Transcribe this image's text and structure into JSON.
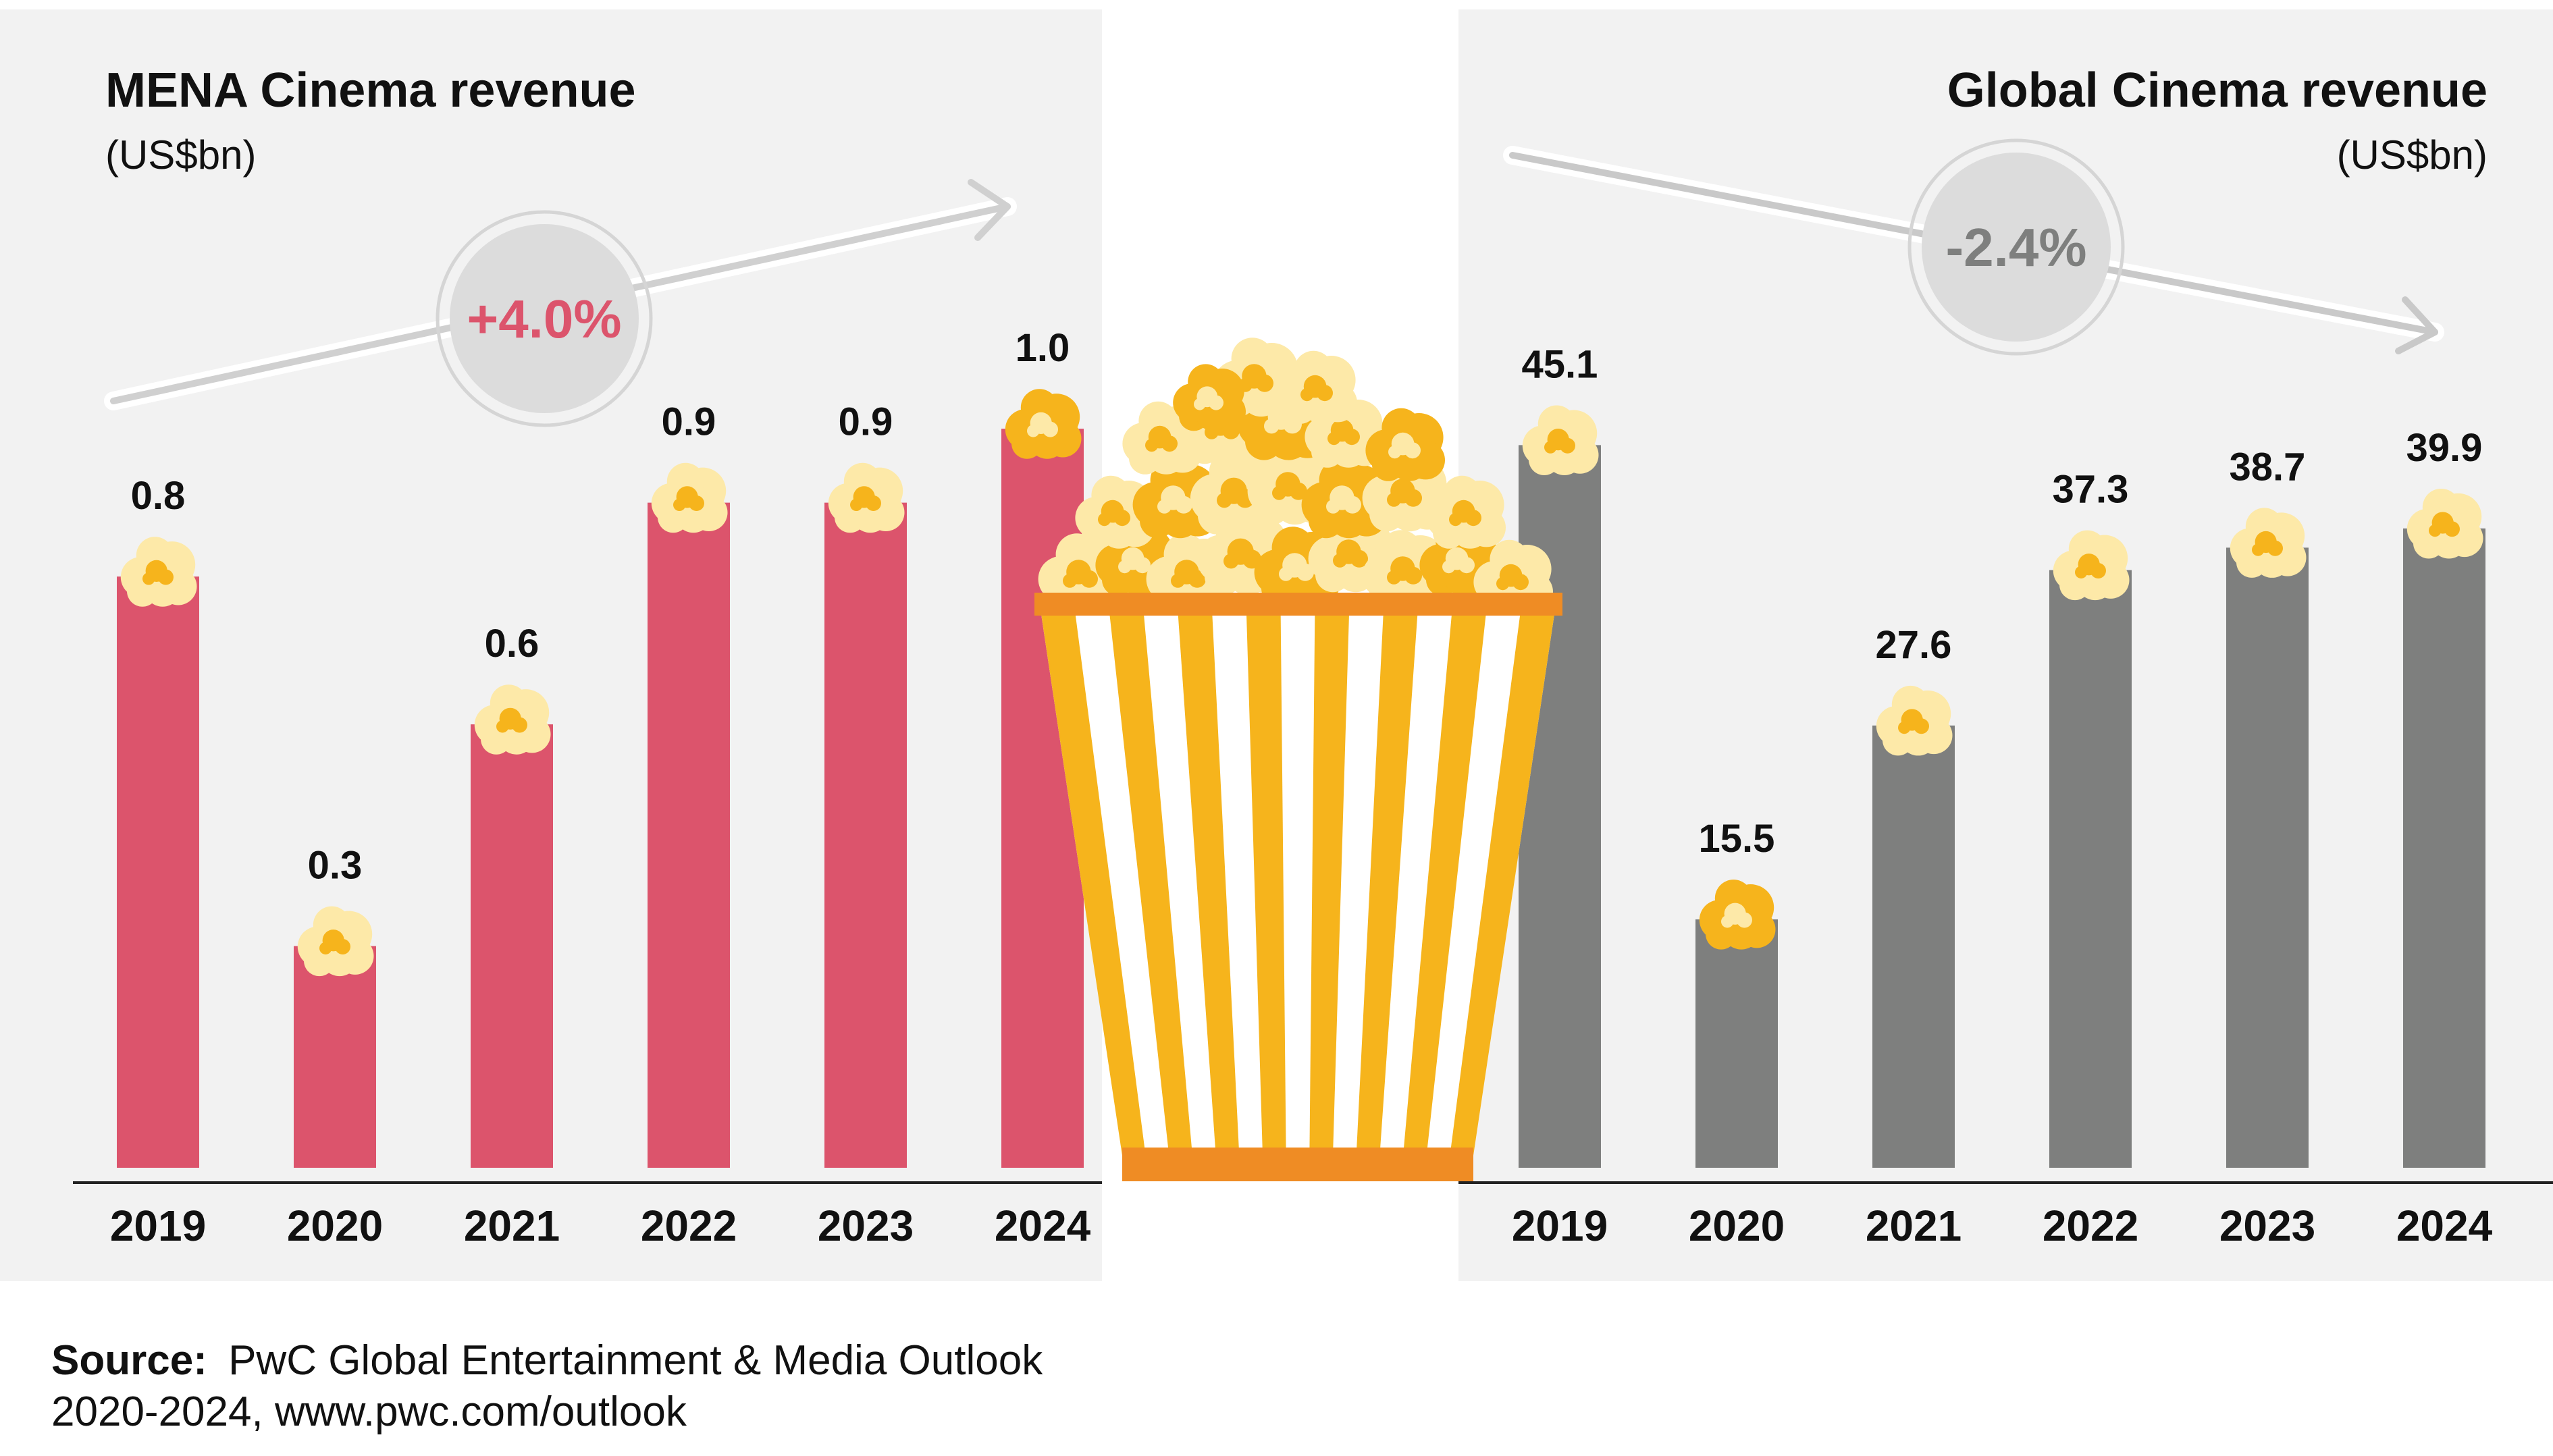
{
  "source": {
    "label": "Source:",
    "line1": "PwC Global Entertainment & Media Outlook",
    "line2": "2020-2024, www.pwc.com/outlook"
  },
  "colors": {
    "mena_bar": "#dc546c",
    "global_bar": "#7e7f7e",
    "panel_bg": "#f2f2f2",
    "badge_bg": "#dcdcdc",
    "mena_badge_text": "#dc546c",
    "global_badge_text": "#7e7f7e",
    "popcorn_light": "#fde9a8",
    "popcorn_dark": "#f6b41c",
    "bucket_stripe": "#f6b41c",
    "bucket_rim": "#ef8c24"
  },
  "icons": [
    "popcorn-bucket-icon",
    "popcorn-kernel-icon",
    "trend-arrow-icon"
  ],
  "chart_data": [
    {
      "type": "bar",
      "title": "MENA Cinema revenue",
      "unit": "(US$bn)",
      "categories": [
        "2019",
        "2020",
        "2021",
        "2022",
        "2023",
        "2024"
      ],
      "values": [
        0.8,
        0.3,
        0.6,
        0.9,
        0.9,
        1.0
      ],
      "labels": [
        "0.8",
        "0.3",
        "0.6",
        "0.9",
        "0.9",
        "1.0"
      ],
      "ylim": [
        0,
        1.16
      ],
      "trend": {
        "text": "+4.0%",
        "direction": "up"
      },
      "grid": false
    },
    {
      "type": "bar",
      "title": "Global Cinema revenue",
      "unit": "(US$bn)",
      "categories": [
        "2019",
        "2020",
        "2021",
        "2022",
        "2023",
        "2024"
      ],
      "values": [
        45.1,
        15.5,
        27.6,
        37.3,
        38.7,
        39.9
      ],
      "labels": [
        "45.1",
        "15.5",
        "27.6",
        "37.3",
        "38.7",
        "39.9"
      ],
      "ylim": [
        0,
        53.5
      ],
      "trend": {
        "text": "-2.4%",
        "direction": "down"
      },
      "grid": false
    }
  ]
}
